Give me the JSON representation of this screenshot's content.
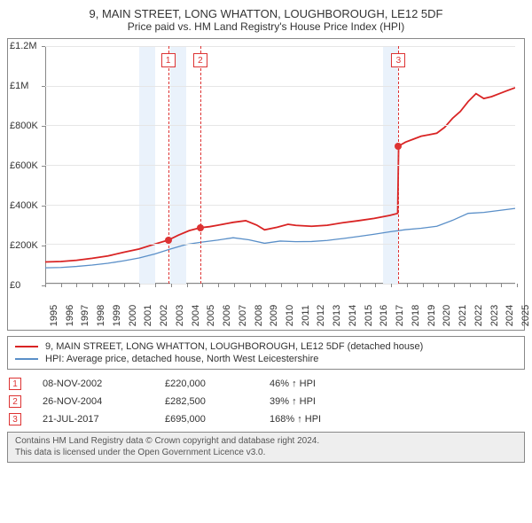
{
  "title": "9, MAIN STREET, LONG WHATTON, LOUGHBOROUGH, LE12 5DF",
  "subtitle": "Price paid vs. HM Land Registry's House Price Index (HPI)",
  "chart": {
    "type": "line",
    "x_start_year": 1995,
    "x_end_year": 2025,
    "xtick_years": [
      1995,
      1996,
      1997,
      1998,
      1999,
      2000,
      2001,
      2002,
      2003,
      2004,
      2005,
      2006,
      2007,
      2008,
      2009,
      2010,
      2011,
      2012,
      2013,
      2014,
      2015,
      2016,
      2017,
      2018,
      2019,
      2020,
      2021,
      2022,
      2023,
      2024,
      2025
    ],
    "ylim": [
      0,
      1200000
    ],
    "ytick_step": 200000,
    "ytick_labels": [
      "£0",
      "£200K",
      "£400K",
      "£600K",
      "£800K",
      "£1M",
      "£1.2M"
    ],
    "background_color": "#ffffff",
    "grid_color": "#e6e6e6",
    "band_color": "#eaf2fb",
    "bands": [
      {
        "start": 2001.0,
        "end": 2002.0
      },
      {
        "start": 2003.0,
        "end": 2004.0
      },
      {
        "start": 2016.54,
        "end": 2017.54
      }
    ],
    "vlines": [
      {
        "x": 2002.85,
        "label": "1"
      },
      {
        "x": 2004.9,
        "label": "2"
      },
      {
        "x": 2017.55,
        "label": "3"
      }
    ],
    "sale_points": [
      {
        "x": 2002.85,
        "y": 220000
      },
      {
        "x": 2004.9,
        "y": 282500
      },
      {
        "x": 2017.55,
        "y": 695000
      }
    ],
    "series": [
      {
        "name": "property",
        "color": "#d92424",
        "width": 1.8,
        "points": [
          [
            1995.0,
            110000
          ],
          [
            1996.0,
            112000
          ],
          [
            1997.0,
            118000
          ],
          [
            1998.0,
            128000
          ],
          [
            1999.0,
            140000
          ],
          [
            2000.0,
            158000
          ],
          [
            2001.0,
            175000
          ],
          [
            2002.0,
            200000
          ],
          [
            2002.85,
            220000
          ],
          [
            2003.5,
            245000
          ],
          [
            2004.2,
            268000
          ],
          [
            2004.9,
            282500
          ],
          [
            2005.5,
            288000
          ],
          [
            2006.0,
            295000
          ],
          [
            2007.0,
            310000
          ],
          [
            2007.8,
            318000
          ],
          [
            2008.5,
            296000
          ],
          [
            2009.0,
            272000
          ],
          [
            2009.8,
            285000
          ],
          [
            2010.5,
            300000
          ],
          [
            2011.0,
            294000
          ],
          [
            2012.0,
            290000
          ],
          [
            2013.0,
            295000
          ],
          [
            2014.0,
            308000
          ],
          [
            2015.0,
            318000
          ],
          [
            2016.0,
            330000
          ],
          [
            2017.0,
            345000
          ],
          [
            2017.5,
            355000
          ],
          [
            2017.56,
            695000
          ],
          [
            2018.0,
            715000
          ],
          [
            2018.5,
            730000
          ],
          [
            2019.0,
            745000
          ],
          [
            2019.5,
            752000
          ],
          [
            2020.0,
            760000
          ],
          [
            2020.5,
            790000
          ],
          [
            2021.0,
            835000
          ],
          [
            2021.5,
            870000
          ],
          [
            2022.0,
            920000
          ],
          [
            2022.5,
            960000
          ],
          [
            2023.0,
            935000
          ],
          [
            2023.5,
            945000
          ],
          [
            2024.0,
            960000
          ],
          [
            2024.5,
            975000
          ],
          [
            2025.0,
            990000
          ]
        ]
      },
      {
        "name": "hpi",
        "color": "#5a8fc8",
        "width": 1.3,
        "points": [
          [
            1995.0,
            80000
          ],
          [
            1996.0,
            82000
          ],
          [
            1997.0,
            87000
          ],
          [
            1998.0,
            94000
          ],
          [
            1999.0,
            103000
          ],
          [
            2000.0,
            115000
          ],
          [
            2001.0,
            130000
          ],
          [
            2002.0,
            150000
          ],
          [
            2003.0,
            175000
          ],
          [
            2004.0,
            198000
          ],
          [
            2005.0,
            210000
          ],
          [
            2006.0,
            220000
          ],
          [
            2007.0,
            232000
          ],
          [
            2008.0,
            222000
          ],
          [
            2009.0,
            204000
          ],
          [
            2010.0,
            215000
          ],
          [
            2011.0,
            212000
          ],
          [
            2012.0,
            213000
          ],
          [
            2013.0,
            218000
          ],
          [
            2014.0,
            228000
          ],
          [
            2015.0,
            238000
          ],
          [
            2016.0,
            250000
          ],
          [
            2017.0,
            262000
          ],
          [
            2018.0,
            273000
          ],
          [
            2019.0,
            280000
          ],
          [
            2020.0,
            290000
          ],
          [
            2021.0,
            320000
          ],
          [
            2022.0,
            355000
          ],
          [
            2023.0,
            360000
          ],
          [
            2024.0,
            370000
          ],
          [
            2025.0,
            380000
          ]
        ]
      }
    ]
  },
  "legend": {
    "items": [
      {
        "color": "#d92424",
        "label": "9, MAIN STREET, LONG WHATTON, LOUGHBOROUGH, LE12 5DF (detached house)"
      },
      {
        "color": "#5a8fc8",
        "label": "HPI: Average price, detached house, North West Leicestershire"
      }
    ]
  },
  "sales": [
    {
      "n": "1",
      "date": "08-NOV-2002",
      "price": "£220,000",
      "pct": "46% ↑ HPI"
    },
    {
      "n": "2",
      "date": "26-NOV-2004",
      "price": "£282,500",
      "pct": "39% ↑ HPI"
    },
    {
      "n": "3",
      "date": "21-JUL-2017",
      "price": "£695,000",
      "pct": "168% ↑ HPI"
    }
  ],
  "footer": {
    "line1": "Contains HM Land Registry data © Crown copyright and database right 2024.",
    "line2": "This data is licensed under the Open Government Licence v3.0."
  }
}
